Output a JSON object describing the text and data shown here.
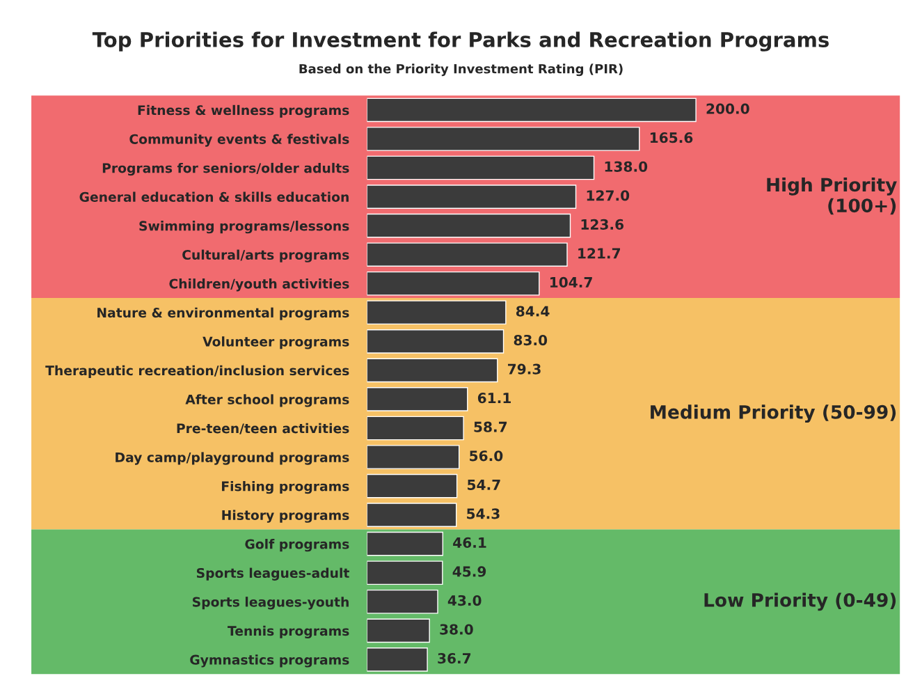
{
  "chart_data": {
    "type": "bar",
    "orientation": "horizontal",
    "title": "Top Priorities for Investment for Parks and Recreation Programs",
    "subtitle": "Based on the Priority Investment Rating (PIR)",
    "categories": [
      "Fitness & wellness programs",
      "Community events & festivals",
      "Programs for seniors/older adults",
      "General education & skills education",
      "Swimming programs/lessons",
      "Cultural/arts programs",
      "Children/youth activities",
      "Nature & environmental programs",
      "Volunteer programs",
      "Therapeutic recreation/inclusion services",
      "After school programs",
      "Pre-teen/teen activities",
      "Day camp/playground programs",
      "Fishing programs",
      "History programs",
      "Golf programs",
      "Sports leagues-adult",
      "Sports leagues-youth",
      "Tennis programs",
      "Gymnastics programs"
    ],
    "values": [
      200.0,
      165.6,
      138.0,
      127.0,
      123.6,
      121.7,
      104.7,
      84.4,
      83.0,
      79.3,
      61.1,
      58.7,
      56.0,
      54.7,
      54.3,
      46.1,
      45.9,
      43.0,
      38.0,
      36.7
    ],
    "value_labels": [
      "200.0",
      "165.6",
      "138.0",
      "127.0",
      "123.6",
      "121.7",
      "104.7",
      "84.4",
      "83.0",
      "79.3",
      "61.1",
      "58.7",
      "56.0",
      "54.7",
      "54.3",
      "46.1",
      "45.9",
      "43.0",
      "38.0",
      "36.7"
    ],
    "color": "#3b3b3b",
    "tick_labels": "y",
    "grid": false,
    "legend": false,
    "bands": [
      {
        "axis": "y",
        "from": "Fitness & wellness programs",
        "to": "Children/youth activities",
        "label": "High Priority\n(100+)",
        "color": "#f16b6f"
      },
      {
        "axis": "y",
        "from": "Nature & environmental programs",
        "to": "History programs",
        "label": "Medium Priority (50-99)",
        "color": "#f6c165"
      },
      {
        "axis": "y",
        "from": "Golf programs",
        "to": "Gymnastics programs",
        "label": "Low Priority (0-49)",
        "color": "#64ba68"
      }
    ]
  }
}
